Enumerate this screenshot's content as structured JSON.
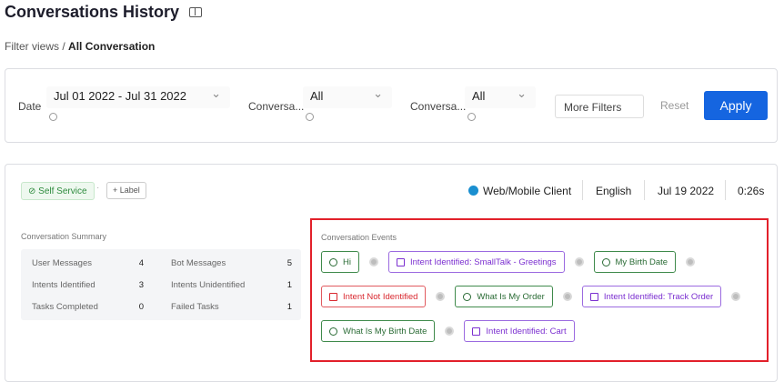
{
  "header": {
    "title": "Conversations History",
    "breadcrumb": [
      "Filter views",
      "All Conversation"
    ]
  },
  "filters": {
    "date_label": "Date",
    "date_value": "Jul 01 2022 - Jul 31 2022",
    "filter2_label": "Conversa...",
    "filter2_value": "All",
    "filter3_label": "Conversa...",
    "filter3_value": "All",
    "more_filters": "More Filters",
    "reset": "Reset",
    "apply": "Apply"
  },
  "conversation": {
    "status": "Self Service",
    "add_label": "Label",
    "channel": "Web/Mobile Client",
    "language": "English",
    "date": "Jul 19 2022",
    "duration": "0:26s"
  },
  "summary": {
    "title": "Conversation Summary",
    "rows": [
      [
        "User Messages",
        4,
        "Bot Messages",
        5
      ],
      [
        "Intents Identified",
        3,
        "Intents Unidentified",
        1
      ],
      [
        "Tasks Completed",
        0,
        "Failed Tasks",
        1
      ]
    ]
  },
  "events": {
    "title": "Conversation Events",
    "rows": [
      [
        {
          "label": "Hi",
          "kind": "user"
        },
        {
          "label": "Intent Identified: SmallTalk - Greetings",
          "kind": "intent"
        },
        {
          "label": "My Birth Date",
          "kind": "user"
        }
      ],
      [
        {
          "label": "Intent Not Identified",
          "kind": "error"
        },
        {
          "label": "What Is My Order",
          "kind": "user"
        },
        {
          "label": "Intent Identified: Track Order",
          "kind": "intent"
        }
      ],
      [
        {
          "label": "What Is My Birth Date",
          "kind": "user"
        },
        {
          "label": "Intent Identified: Cart",
          "kind": "intent"
        }
      ]
    ]
  }
}
